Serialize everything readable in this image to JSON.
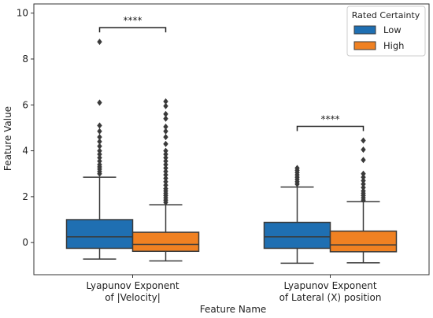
{
  "chart_data": {
    "type": "box",
    "xlabel": "Feature Name",
    "ylabel": "Feature Value",
    "ylim": [
      -1.4,
      10.4
    ],
    "yticks": [
      0,
      2,
      4,
      6,
      8,
      10
    ],
    "categories": [
      [
        "Lyapunov Exponent",
        "of |Velocity|"
      ],
      [
        "Lyapunov Exponent",
        "of Lateral (X) position"
      ]
    ],
    "legend": {
      "title": "Rated Certainty",
      "position": "top-right",
      "entries": [
        {
          "name": "Low",
          "color": "#1f6fb2"
        },
        {
          "name": "High",
          "color": "#f08122"
        }
      ]
    },
    "groups": [
      {
        "category": "Lyapunov Exponent of |Velocity|",
        "significance": "****",
        "boxes": [
          {
            "series": "Low",
            "whisker_low": -0.72,
            "q1": -0.25,
            "median": 0.25,
            "q3": 1.0,
            "whisker_high": 2.85,
            "outliers": [
              3.0,
              3.1,
              3.2,
              3.3,
              3.4,
              3.55,
              3.7,
              3.85,
              4.0,
              4.2,
              4.4,
              4.6,
              4.85,
              5.1,
              6.1,
              8.75
            ]
          },
          {
            "series": "High",
            "whisker_low": -0.8,
            "q1": -0.38,
            "median": -0.08,
            "q3": 0.45,
            "whisker_high": 1.65,
            "outliers": [
              1.75,
              1.85,
              1.95,
              2.05,
              2.15,
              2.25,
              2.35,
              2.5,
              2.65,
              2.8,
              2.95,
              3.1,
              3.25,
              3.4,
              3.55,
              3.7,
              3.85,
              4.0,
              4.3,
              4.6,
              4.85,
              5.05,
              5.4,
              5.6,
              5.95,
              6.15
            ]
          }
        ]
      },
      {
        "category": "Lyapunov Exponent of Lateral (X) position",
        "significance": "****",
        "boxes": [
          {
            "series": "Low",
            "whisker_low": -0.9,
            "q1": -0.25,
            "median": 0.25,
            "q3": 0.88,
            "whisker_high": 2.42,
            "outliers": [
              2.55,
              2.65,
              2.75,
              2.85,
              2.95,
              3.05,
              3.15,
              3.25
            ]
          },
          {
            "series": "High",
            "whisker_low": -0.88,
            "q1": -0.4,
            "median": -0.1,
            "q3": 0.5,
            "whisker_high": 1.78,
            "outliers": [
              1.85,
              1.95,
              2.05,
              2.15,
              2.25,
              2.4,
              2.55,
              2.7,
              2.85,
              3.0,
              3.6,
              4.05,
              4.45
            ]
          }
        ]
      }
    ]
  }
}
